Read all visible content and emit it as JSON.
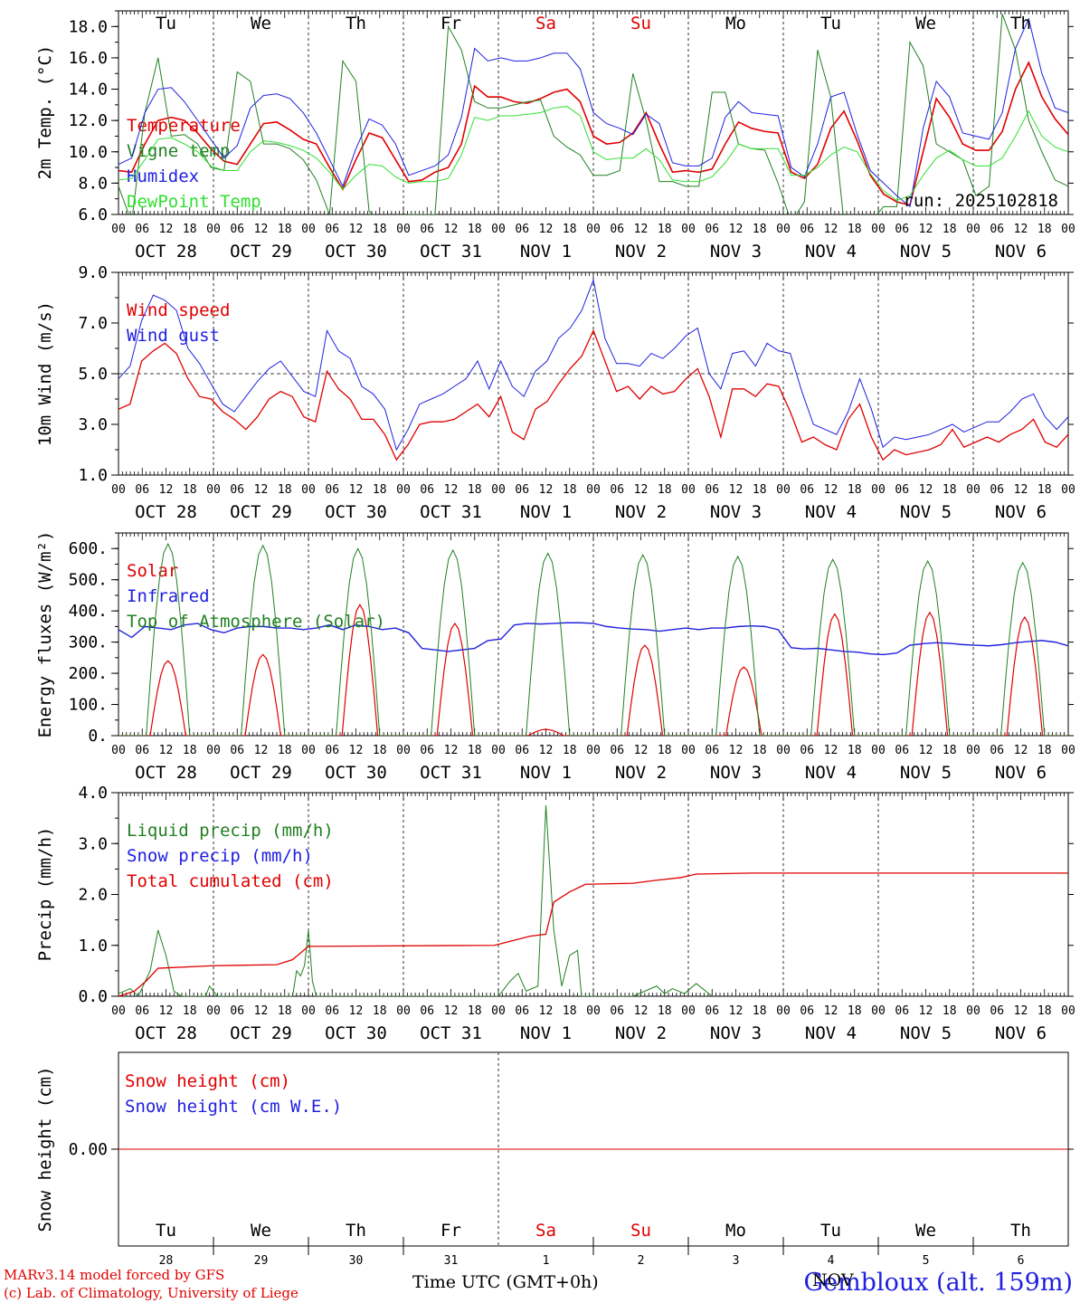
{
  "days": {
    "abbr": [
      "Tu",
      "We",
      "Th",
      "Fr",
      "Sa",
      "Su",
      "Mo",
      "Tu",
      "We",
      "Th"
    ],
    "months": [
      "OCT",
      "OCT",
      "OCT",
      "OCT",
      "NOV",
      "NOV",
      "NOV",
      "NOV",
      "NOV",
      "NOV"
    ],
    "nums": [
      "28",
      "29",
      "30",
      "31",
      "1",
      "2",
      "3",
      "4",
      "5",
      "6"
    ],
    "weekend_color": "#e00000"
  },
  "hour_ticks": [
    "00",
    "06",
    "12",
    "18"
  ],
  "end_tick": "00",
  "run_label": "run: 2025102818",
  "footer": {
    "model": "MARv3.14 model forced by GFS",
    "lab": "(c) Lab. of Climatology, University of Liege",
    "xlabel": "Time UTC (GMT+0h)",
    "station": "Gembloux (alt. 159m)",
    "month_overlay": "NOV"
  },
  "chart_data": [
    {
      "type": "line",
      "id": "temp",
      "ylabel": "2m Temp. (°C)",
      "ylim": [
        6,
        19
      ],
      "yticks": [
        "6.0",
        "8.0",
        "10.0",
        "12.0",
        "14.0",
        "16.0",
        "18.0"
      ],
      "x_unit": "hours since Oct 28 00 UTC (3-hourly)",
      "series": [
        {
          "name": "Temperature",
          "color": "#e00000",
          "width": 1.6,
          "values": [
            8.8,
            8.7,
            10.5,
            12,
            12.2,
            12,
            11.2,
            10.2,
            9.4,
            9.2,
            10.5,
            11.8,
            11.9,
            11.4,
            10.8,
            10.5,
            9,
            7.6,
            9.5,
            11.2,
            10.9,
            9.5,
            8.1,
            8.2,
            8.7,
            9,
            10.5,
            14.2,
            13.5,
            13.5,
            13.2,
            13.1,
            13.4,
            13.8,
            14,
            13.2,
            11,
            10.5,
            10.6,
            11.2,
            12.5,
            10.5,
            8.7,
            8.8,
            8.7,
            8.9,
            10.5,
            11.9,
            11.5,
            11.3,
            11.2,
            8.7,
            8.3,
            9.2,
            11.5,
            12.6,
            10.7,
            8.5,
            7.3,
            6.8,
            6.6,
            10,
            13.4,
            12.2,
            10.5,
            10.1,
            10.1,
            11.3,
            14,
            15.7,
            13.5,
            12.1,
            11.1
          ]
        },
        {
          "name": "Vigne temp",
          "color": "#208020",
          "width": 1,
          "values": [
            7.8,
            5.5,
            12.5,
            16,
            11,
            11.1,
            10.5,
            9,
            8.8,
            15.1,
            14.5,
            10.5,
            10.5,
            10.2,
            9.5,
            8.2,
            6,
            15.8,
            14.5,
            6.2,
            5.5,
            5.8,
            6,
            6,
            6,
            18,
            16.5,
            13.2,
            12.8,
            12.8,
            13,
            13.2,
            13.3,
            11,
            10.3,
            9.8,
            8.5,
            8.5,
            8.8,
            15,
            12,
            8.1,
            8.1,
            7.8,
            7.8,
            13.8,
            13.8,
            10.5,
            10.2,
            10.1,
            8,
            5.5,
            6.8,
            16.5,
            13.5,
            5.5,
            5.5,
            5.5,
            6.5,
            6.5,
            17,
            15.5,
            10.5,
            10,
            9.5,
            7.2,
            7.8,
            18.8,
            16.5,
            12,
            10,
            8.2,
            7.8
          ]
        },
        {
          "name": "Humidex",
          "color": "#2020e0",
          "width": 1,
          "values": [
            9.2,
            9.6,
            12.5,
            14,
            14.1,
            13.2,
            12,
            10.8,
            9.6,
            10.4,
            12.8,
            13.6,
            13.7,
            13.4,
            12.5,
            11.2,
            9.5,
            7.8,
            10.2,
            12.1,
            11.7,
            10.5,
            8.5,
            8.8,
            9.1,
            9.8,
            12.2,
            16.6,
            15.8,
            16,
            15.8,
            15.8,
            16,
            16.3,
            16.3,
            15.3,
            12.5,
            11.8,
            11.5,
            11.1,
            12.4,
            11.8,
            9.3,
            9.1,
            9.1,
            9.6,
            12.2,
            13.2,
            12.5,
            12.4,
            12.3,
            9,
            8.4,
            10.5,
            13.5,
            13.8,
            11.1,
            8.8,
            8,
            7.2,
            6.5,
            11.5,
            14.5,
            13.5,
            11.2,
            11,
            10.8,
            12.5,
            16.6,
            18.5,
            15,
            12.8,
            12.5
          ]
        },
        {
          "name": "DewPoint Temp",
          "color": "#30e030",
          "width": 1,
          "values": [
            8.2,
            8.3,
            9.5,
            10.8,
            10.9,
            10.5,
            10,
            9.1,
            8.8,
            8.8,
            10,
            10.7,
            10.6,
            10.4,
            10.1,
            9.6,
            8.7,
            7.6,
            8.5,
            9.2,
            9.1,
            8.4,
            8,
            8.1,
            8.1,
            8.3,
            9.8,
            12.2,
            12,
            12.3,
            12.3,
            12.4,
            12.5,
            12.8,
            12.9,
            12.3,
            10,
            9.5,
            9.6,
            9.6,
            10.2,
            9.5,
            8.2,
            8.1,
            8.1,
            8.4,
            9.3,
            10.5,
            10.2,
            10.2,
            10.2,
            8.5,
            8.5,
            9,
            9.8,
            10.3,
            10,
            8.6,
            7.5,
            6.9,
            7.2,
            8.5,
            9.6,
            10.1,
            9.5,
            9.1,
            9.1,
            9.6,
            11,
            12.6,
            11,
            10.3,
            10
          ]
        }
      ]
    },
    {
      "type": "line",
      "id": "wind",
      "ylabel": "10m Wind (m/s)",
      "ylim": [
        1,
        9
      ],
      "yticks": [
        "1.0",
        "3.0",
        "5.0",
        "7.0",
        "9.0"
      ],
      "ref_line": 5.0,
      "series": [
        {
          "name": "Wind speed",
          "color": "#e00000",
          "width": 1.3,
          "values": [
            3.6,
            3.8,
            5.5,
            5.9,
            6.2,
            5.8,
            4.8,
            4.1,
            4,
            3.5,
            3.2,
            2.8,
            3.3,
            4,
            4.3,
            4.1,
            3.3,
            3.1,
            5.1,
            4.4,
            4,
            3.2,
            3.2,
            2.6,
            1.6,
            2.2,
            3,
            3.1,
            3.1,
            3.2,
            3.5,
            3.8,
            3.3,
            4.1,
            2.7,
            2.4,
            3.6,
            3.9,
            4.6,
            5.2,
            5.7,
            6.7,
            5.5,
            4.3,
            4.5,
            4,
            4.5,
            4.2,
            4.3,
            4.8,
            5.2,
            4.1,
            2.5,
            4.4,
            4.4,
            4.1,
            4.6,
            4.5,
            3.5,
            2.3,
            2.5,
            2.2,
            2,
            3.2,
            3.8,
            2.5,
            1.6,
            2,
            1.8,
            1.9,
            2,
            2.2,
            2.8,
            2.1,
            2.3,
            2.5,
            2.3,
            2.6,
            2.8,
            3.2,
            2.3,
            2.1,
            2.6
          ]
        },
        {
          "name": "Wind gust",
          "color": "#2020e0",
          "width": 1,
          "values": [
            4.8,
            5.3,
            7.1,
            8.1,
            7.9,
            7.5,
            6,
            5.4,
            4.6,
            3.8,
            3.5,
            4.1,
            4.7,
            5.2,
            5.5,
            4.9,
            4.3,
            4.1,
            6.7,
            5.9,
            5.6,
            4.5,
            4.2,
            3.6,
            2,
            2.8,
            3.8,
            4,
            4.2,
            4.5,
            4.8,
            5.5,
            4.4,
            5.5,
            4.5,
            4.1,
            5.1,
            5.5,
            6.4,
            6.8,
            7.5,
            8.7,
            6.4,
            5.4,
            5.4,
            5.3,
            5.8,
            5.6,
            6,
            6.5,
            6.8,
            5,
            4.4,
            5.8,
            5.9,
            5.3,
            6.2,
            5.9,
            5.8,
            4.3,
            3,
            2.8,
            2.6,
            3.5,
            4.8,
            3.6,
            2.1,
            2.5,
            2.4,
            2.5,
            2.6,
            2.8,
            3,
            2.7,
            2.9,
            3.1,
            3.1,
            3.5,
            4,
            4.2,
            3.3,
            2.8,
            3.3
          ]
        }
      ]
    },
    {
      "type": "line",
      "id": "flux",
      "ylabel": "Energy fluxes (W/m²)",
      "ylim": [
        0,
        650
      ],
      "yticks": [
        "0.",
        "100.",
        "200.",
        "300.",
        "400.",
        "500.",
        "600."
      ],
      "series": [
        {
          "name": "Solar",
          "color": "#e00000",
          "width": 1.2,
          "peaks": [
            [
              12.5,
              240
            ],
            [
              12.5,
              260
            ],
            [
              13,
              420
            ],
            [
              13,
              360
            ],
            [
              12,
              20
            ],
            [
              13,
              290
            ],
            [
              14,
              220
            ],
            [
              13,
              390
            ],
            [
              13,
              395
            ],
            [
              13,
              380
            ]
          ]
        },
        {
          "name": "Infrared",
          "color": "#2020e0",
          "width": 1.4,
          "values": [
            340,
            315,
            350,
            345,
            340,
            355,
            360,
            340,
            330,
            345,
            350,
            350,
            345,
            345,
            340,
            345,
            355,
            340,
            355,
            350,
            340,
            345,
            330,
            280,
            275,
            270,
            275,
            280,
            305,
            310,
            355,
            360,
            358,
            360,
            362,
            362,
            360,
            350,
            345,
            342,
            340,
            335,
            340,
            345,
            340,
            345,
            345,
            350,
            352,
            350,
            340,
            282,
            278,
            280,
            275,
            270,
            268,
            262,
            260,
            265,
            290,
            295,
            298,
            296,
            292,
            290,
            288,
            292,
            298,
            302,
            305,
            300,
            288
          ]
        },
        {
          "name": "Top of Atmosphere (Solar)",
          "color": "#208020",
          "width": 1,
          "peaks": [
            [
              12.5,
              615
            ],
            [
              12.5,
              610
            ],
            [
              12.5,
              600
            ],
            [
              12.5,
              595
            ],
            [
              12.5,
              585
            ],
            [
              12.5,
              580
            ],
            [
              12.5,
              575
            ],
            [
              12.5,
              565
            ],
            [
              12.5,
              560
            ],
            [
              12.5,
              555
            ]
          ]
        }
      ]
    },
    {
      "type": "line",
      "id": "precip",
      "ylabel": "Precip (mm/h)",
      "ylim": [
        0,
        4
      ],
      "yticks": [
        "0.0",
        "1.0",
        "2.0",
        "3.0",
        "4.0"
      ],
      "series": [
        {
          "name": "Liquid precip (mm/h)",
          "color": "#208020",
          "width": 1,
          "points": [
            [
              0,
              0.05
            ],
            [
              3,
              0.15
            ],
            [
              5,
              0
            ],
            [
              8,
              0.5
            ],
            [
              10,
              1.3
            ],
            [
              12,
              0.8
            ],
            [
              14,
              0.1
            ],
            [
              16,
              0
            ],
            [
              22,
              0
            ],
            [
              23,
              0.2
            ],
            [
              25,
              0
            ],
            [
              44,
              0
            ],
            [
              45,
              0.5
            ],
            [
              46,
              0.4
            ],
            [
              47,
              0.6
            ],
            [
              48,
              1.3
            ],
            [
              49,
              0.3
            ],
            [
              50,
              0
            ],
            [
              96,
              0
            ],
            [
              99,
              0.3
            ],
            [
              101,
              0.45
            ],
            [
              103,
              0.1
            ],
            [
              106,
              0.2
            ],
            [
              108,
              3.75
            ],
            [
              110,
              1.3
            ],
            [
              112,
              0.2
            ],
            [
              114,
              0.8
            ],
            [
              116,
              0.9
            ],
            [
              117,
              0
            ],
            [
              130,
              0
            ],
            [
              136,
              0.2
            ],
            [
              138,
              0.05
            ],
            [
              140,
              0.15
            ],
            [
              143,
              0.05
            ],
            [
              146,
              0.25
            ],
            [
              150,
              0
            ]
          ]
        },
        {
          "name": "Snow precip (mm/h)",
          "color": "#2020e0",
          "width": 1,
          "points": []
        },
        {
          "name": "Total cumulated (cm)",
          "color": "#e00000",
          "width": 1.3,
          "points": [
            [
              0,
              0
            ],
            [
              4,
              0.1
            ],
            [
              7,
              0.3
            ],
            [
              10,
              0.55
            ],
            [
              24,
              0.6
            ],
            [
              40,
              0.62
            ],
            [
              44,
              0.72
            ],
            [
              48,
              0.98
            ],
            [
              95,
              1
            ],
            [
              100,
              1.1
            ],
            [
              104,
              1.18
            ],
            [
              108,
              1.22
            ],
            [
              110,
              1.85
            ],
            [
              114,
              2.05
            ],
            [
              118,
              2.2
            ],
            [
              130,
              2.22
            ],
            [
              136,
              2.28
            ],
            [
              142,
              2.33
            ],
            [
              146,
              2.4
            ],
            [
              160,
              2.42
            ],
            [
              240,
              2.42
            ]
          ]
        }
      ]
    },
    {
      "type": "line",
      "id": "snow",
      "ylabel": "Snow height (cm)",
      "ylim": [
        -1,
        1
      ],
      "yticks": [
        "0.00"
      ],
      "series": [
        {
          "name": "Snow height (cm)",
          "color": "#e00000",
          "width": 1,
          "points": [
            [
              0,
              0
            ],
            [
              240,
              0
            ]
          ]
        },
        {
          "name": "Snow height (cm W.E.)",
          "color": "#2020e0",
          "width": 1,
          "points": []
        }
      ]
    }
  ]
}
